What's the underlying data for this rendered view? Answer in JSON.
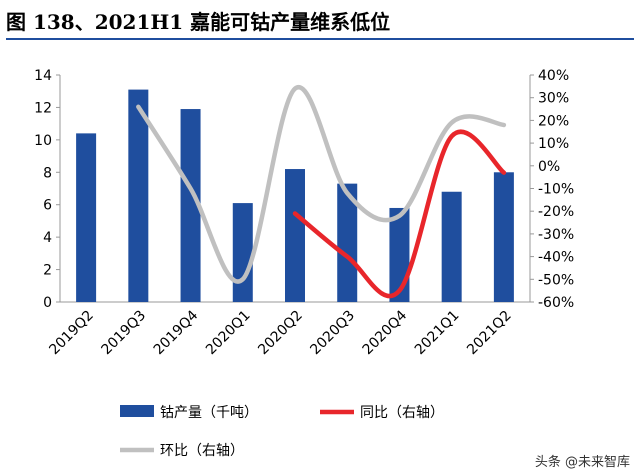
{
  "title": "图 138、2021H1 嘉能可钴产量维系低位",
  "watermark": "头条 @未来智库",
  "chart_data": {
    "type": "bar",
    "categories": [
      "2019Q2",
      "2019Q3",
      "2019Q4",
      "2020Q1",
      "2020Q2",
      "2020Q3",
      "2020Q4",
      "2021Q1",
      "2021Q2"
    ],
    "series": [
      {
        "name": "钴产量（千吨）",
        "type": "bar",
        "axis": "left",
        "color": "#1f4e9e",
        "values": [
          10.4,
          13.1,
          11.9,
          6.1,
          8.2,
          7.3,
          5.8,
          6.8,
          8.0
        ]
      },
      {
        "name": "同比（右轴）",
        "type": "line",
        "axis": "right",
        "color": "#e8262b",
        "values": [
          null,
          null,
          null,
          null,
          -21,
          -40,
          -55,
          13,
          -3
        ]
      },
      {
        "name": "环比（右轴）",
        "type": "line",
        "axis": "right",
        "color": "#c0c0c0",
        "values": [
          null,
          26,
          -10,
          -50,
          34,
          -12,
          -22,
          19,
          18
        ]
      }
    ],
    "y_left": {
      "min": 0,
      "max": 14,
      "ticks": [
        "0",
        "2",
        "4",
        "6",
        "8",
        "10",
        "12",
        "14"
      ]
    },
    "y_right": {
      "min": -60,
      "max": 40,
      "ticks": [
        "-60%",
        "-50%",
        "-40%",
        "-30%",
        "-20%",
        "-10%",
        "0%",
        "10%",
        "20%",
        "30%",
        "40%"
      ]
    },
    "grid": false,
    "legend_position": "bottom"
  }
}
